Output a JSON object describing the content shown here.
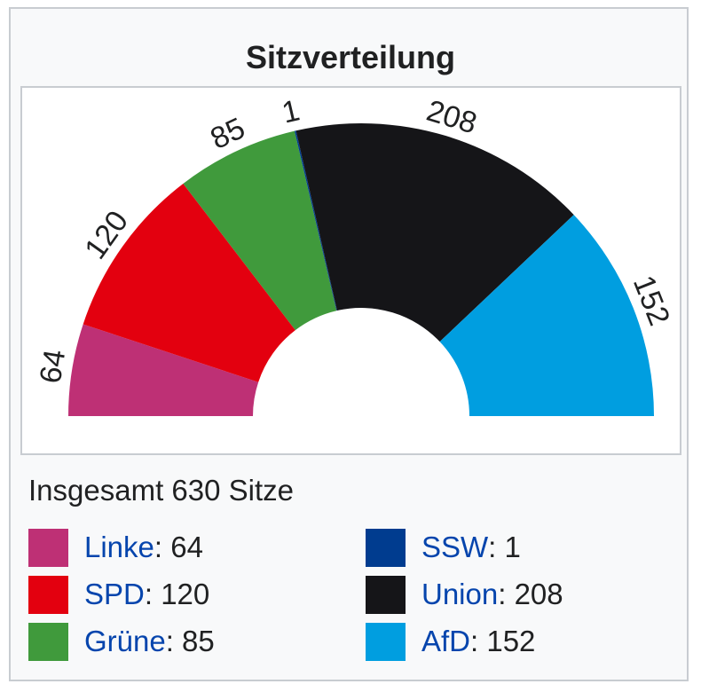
{
  "title": "Sitzverteilung",
  "total_text": "Insgesamt 630 Sitze",
  "chart_data": {
    "type": "pie",
    "variant": "parliament-semicircle",
    "total": 630,
    "series": [
      {
        "name": "Linke",
        "value": 64,
        "color": "#be3075"
      },
      {
        "name": "SPD",
        "value": 120,
        "color": "#e3000f"
      },
      {
        "name": "Grüne",
        "value": 85,
        "color": "#409a3c"
      },
      {
        "name": "SSW",
        "value": 1,
        "color": "#003c8f"
      },
      {
        "name": "Union",
        "value": 208,
        "color": "#151518"
      },
      {
        "name": "AfD",
        "value": 152,
        "color": "#009ee0"
      }
    ]
  },
  "legend": [
    {
      "name": "Linke",
      "value": ": 64",
      "color": "#be3075"
    },
    {
      "name": "SPD",
      "value": ": 120",
      "color": "#e3000f"
    },
    {
      "name": "Grüne",
      "value": ": 85",
      "color": "#409a3c"
    },
    {
      "name": "SSW",
      "value": ": 1",
      "color": "#003c8f"
    },
    {
      "name": "Union",
      "value": ": 208",
      "color": "#151518"
    },
    {
      "name": "AfD",
      "value": ": 152",
      "color": "#009ee0"
    }
  ]
}
